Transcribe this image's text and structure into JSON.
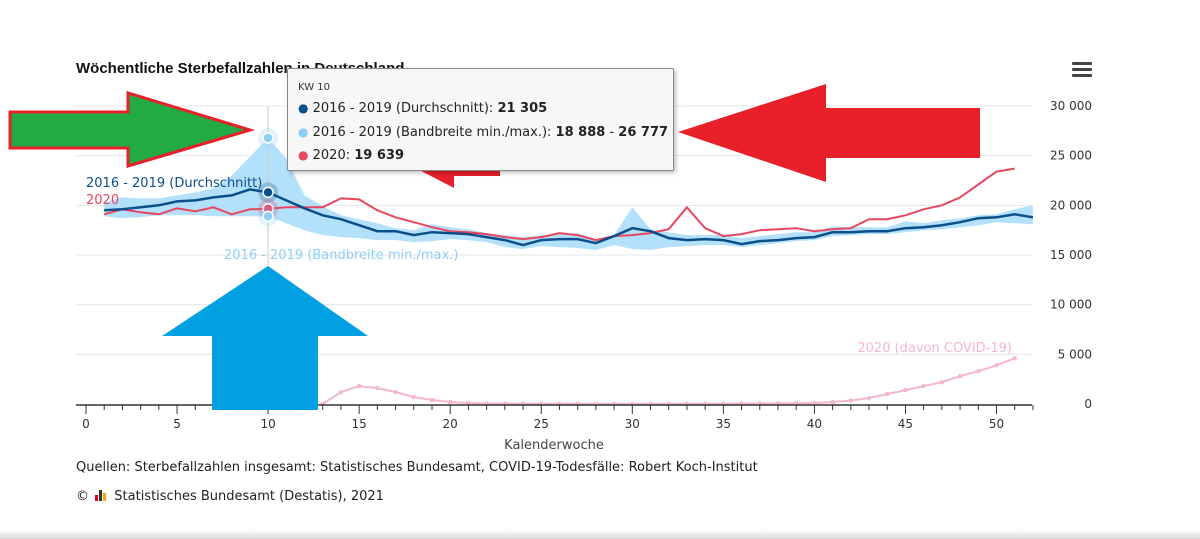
{
  "title": "Wöchentliche Sterbefallzahlen in Deutschland",
  "menu_icon": "hamburger-menu-icon",
  "tooltip": {
    "header": "KW 10",
    "rows": [
      {
        "label": "2016 - 2019 (Durchschnitt): ",
        "value": "21 305",
        "color": "#0b4f8a"
      },
      {
        "label": "2016 - 2019 (Bandbreite min./max.): ",
        "value": "18 888",
        "sep": " - ",
        "value2": "26 777",
        "color": "#8ecff5"
      },
      {
        "label": "2020: ",
        "value": "19 639",
        "color": "#e8475f"
      }
    ]
  },
  "source": "Quellen: Sterbefallzahlen insgesamt: Statistisches Bundesamt, COVID-19-Todesfälle: Robert Koch-Institut",
  "copyright_symbol": "©",
  "copyright": "Statistisches Bundesamt (Destatis), 2021",
  "annotations": {
    "arrows": [
      {
        "name": "green-arrow-right",
        "color": "#22aa44"
      },
      {
        "name": "red-arrow-left-large",
        "color": "#e8202a"
      },
      {
        "name": "red-arrow-left-small",
        "color": "#e8202a"
      },
      {
        "name": "blue-arrow-up",
        "color": "#00a0e3"
      }
    ]
  },
  "colors": {
    "avg": "#0b4f8a",
    "band": "#a6dbfa",
    "y2020": "#e8475f",
    "covid": "#f4b8c6",
    "axis": "#333333",
    "grid": "#e6e6e6"
  },
  "chart_data": {
    "type": "line",
    "xlabel": "Kalenderwoche",
    "ylabel": "",
    "xlim": [
      0,
      52
    ],
    "ylim": [
      0,
      30000
    ],
    "x_ticks": [
      0,
      5,
      10,
      15,
      20,
      25,
      30,
      35,
      40,
      45,
      50
    ],
    "x_tick_labels": [
      "0",
      "5",
      "10",
      "15",
      "20",
      "25",
      "30",
      "35",
      "40",
      "45",
      "50"
    ],
    "y_ticks": [
      0,
      5000,
      10000,
      15000,
      20000,
      25000,
      30000
    ],
    "y_tick_labels": [
      "0",
      "5 000",
      "10 000",
      "15 000",
      "20 000",
      "25 000",
      "30 000"
    ],
    "grid": true,
    "series_labels": [
      {
        "series": "avg",
        "text": "2016 - 2019 (Durchschnitt)"
      },
      {
        "series": "y2020",
        "text": "2020"
      },
      {
        "series": "band",
        "text": "2016 - 2019 (Bandbreite min./max.)"
      },
      {
        "series": "covid",
        "text": "2020 (davon COVID-19)"
      }
    ],
    "weeks": [
      1,
      2,
      3,
      4,
      5,
      6,
      7,
      8,
      9,
      10,
      11,
      12,
      13,
      14,
      15,
      16,
      17,
      18,
      19,
      20,
      21,
      22,
      23,
      24,
      25,
      26,
      27,
      28,
      29,
      30,
      31,
      32,
      33,
      34,
      35,
      36,
      37,
      38,
      39,
      40,
      41,
      42,
      43,
      44,
      45,
      46,
      47,
      48,
      49,
      50,
      51,
      52
    ],
    "series": [
      {
        "key": "band_min",
        "values": [
          18900,
          18700,
          18800,
          19000,
          19000,
          19000,
          18900,
          18900,
          18900,
          18888,
          18200,
          17500,
          17000,
          16800,
          16700,
          16500,
          16500,
          16300,
          16400,
          16600,
          16500,
          16300,
          15800,
          15600,
          15900,
          15800,
          15700,
          15500,
          16000,
          15600,
          15500,
          15800,
          15900,
          16000,
          16000,
          15800,
          16000,
          16200,
          16400,
          16500,
          16900,
          17000,
          17100,
          17100,
          17300,
          17500,
          17600,
          17800,
          18000,
          18300,
          18200,
          18100
        ]
      },
      {
        "key": "band_max",
        "values": [
          20300,
          20800,
          20700,
          20700,
          21000,
          21300,
          21700,
          23000,
          24900,
          26777,
          24700,
          21000,
          19900,
          19000,
          18600,
          18200,
          17700,
          17500,
          18100,
          17800,
          17600,
          17200,
          17000,
          16800,
          17000,
          17100,
          17200,
          16600,
          17000,
          19800,
          17600,
          17300,
          17000,
          17000,
          17000,
          16700,
          16900,
          17100,
          17300,
          17300,
          17900,
          17800,
          17800,
          17800,
          18400,
          18200,
          18500,
          18700,
          19000,
          19100,
          19600,
          20000
        ]
      },
      {
        "key": "avg",
        "name": "2016 - 2019 (Durchschnitt)",
        "values": [
          19500,
          19600,
          19800,
          20000,
          20400,
          20500,
          20800,
          21000,
          21600,
          21305,
          20500,
          19700,
          19000,
          18600,
          18000,
          17400,
          17400,
          17000,
          17300,
          17200,
          17100,
          16800,
          16500,
          16000,
          16500,
          16600,
          16600,
          16200,
          16900,
          17700,
          17400,
          16700,
          16500,
          16600,
          16500,
          16100,
          16400,
          16500,
          16700,
          16800,
          17300,
          17300,
          17400,
          17400,
          17700,
          17800,
          18000,
          18300,
          18700,
          18800,
          19100,
          18800
        ]
      },
      {
        "key": "y2020",
        "name": "2020",
        "values": [
          19100,
          19600,
          19300,
          19100,
          19700,
          19400,
          19800,
          19100,
          19600,
          19639,
          19800,
          19800,
          19800,
          20700,
          20600,
          19500,
          18800,
          18300,
          17800,
          17400,
          17300,
          17100,
          16800,
          16600,
          16800,
          17200,
          17000,
          16500,
          16900,
          17000,
          17200,
          17600,
          19800,
          17700,
          16900,
          17100,
          17500,
          17600,
          17700,
          17400,
          17600,
          17700,
          18600,
          18600,
          19000,
          19600,
          20000,
          20800,
          22100,
          23400,
          23700,
          null
        ]
      },
      {
        "key": "covid",
        "name": "2020 (davon COVID-19)",
        "values": [
          null,
          null,
          null,
          null,
          null,
          null,
          null,
          null,
          null,
          null,
          null,
          null,
          0,
          1200,
          1800,
          1600,
          1200,
          700,
          400,
          200,
          100,
          50,
          40,
          30,
          20,
          20,
          20,
          10,
          10,
          10,
          10,
          10,
          20,
          20,
          20,
          40,
          50,
          60,
          80,
          100,
          200,
          350,
          600,
          1000,
          1400,
          1800,
          2200,
          2800,
          3300,
          3900,
          4600,
          null
        ]
      }
    ],
    "highlight": {
      "week": 10
    }
  }
}
